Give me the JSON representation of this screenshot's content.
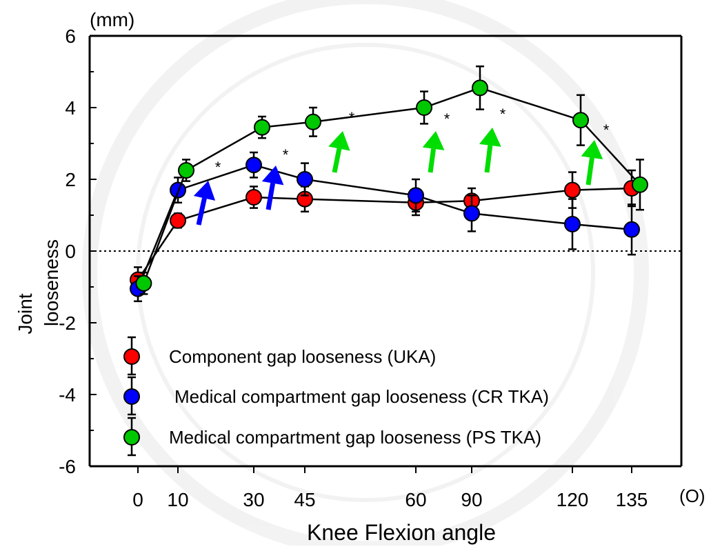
{
  "chart_data": {
    "type": "line",
    "y_unit": "(mm)",
    "x_unit": "(O)",
    "xlabel": "Knee Flexion angle",
    "ylabel": [
      "Joint",
      "looseness"
    ],
    "ylim": [
      -6,
      6
    ],
    "yticks": [
      "6",
      "4",
      "2",
      "0",
      "-2",
      "-4",
      "-6"
    ],
    "xticks": [
      "0",
      "10",
      "30",
      "45",
      "60",
      "90",
      "120",
      "135"
    ],
    "reference_line": 0,
    "series": [
      {
        "name": "Component gap looseness (UKA)",
        "color": "#ff0000",
        "x": [
          0,
          10,
          30,
          45,
          60,
          90,
          120,
          135
        ],
        "y": [
          -0.8,
          0.85,
          1.5,
          1.45,
          1.35,
          1.4,
          1.7,
          1.75
        ],
        "err": [
          0.35,
          0.2,
          0.3,
          0.35,
          0.35,
          0.35,
          0.5,
          0.5
        ]
      },
      {
        "name": "Medical compartment gap looseness (CR TKA)",
        "color": "#0000ff",
        "x": [
          0,
          10,
          30,
          45,
          60,
          90,
          120,
          135
        ],
        "y": [
          -1.05,
          1.7,
          2.4,
          2.0,
          1.55,
          1.05,
          0.75,
          0.6
        ],
        "err": [
          0.35,
          0.35,
          0.35,
          0.45,
          0.45,
          0.5,
          0.7,
          0.7
        ]
      },
      {
        "name": "Medical compartment gap looseness (PS TKA)",
        "color": "#00c800",
        "x": [
          0,
          10,
          30,
          45,
          60,
          90,
          120,
          135
        ],
        "y": [
          -0.9,
          2.25,
          3.45,
          3.6,
          4.0,
          4.55,
          3.65,
          1.85
        ],
        "err": [
          0.3,
          0.3,
          0.3,
          0.4,
          0.45,
          0.6,
          0.7,
          0.7
        ]
      }
    ],
    "significance_marks": [
      "*",
      "*",
      "*",
      "*",
      "*",
      "*"
    ],
    "arrows": [
      {
        "color": "#0000ff",
        "between": [
          10,
          30
        ]
      },
      {
        "color": "#0000ff",
        "between": [
          30,
          45
        ]
      },
      {
        "color": "#00dd00",
        "between": [
          45,
          60
        ]
      },
      {
        "color": "#00dd00",
        "between": [
          60,
          90
        ]
      },
      {
        "color": "#00dd00",
        "between": [
          90,
          120
        ]
      },
      {
        "color": "#00dd00",
        "between": [
          120,
          135
        ]
      }
    ]
  }
}
